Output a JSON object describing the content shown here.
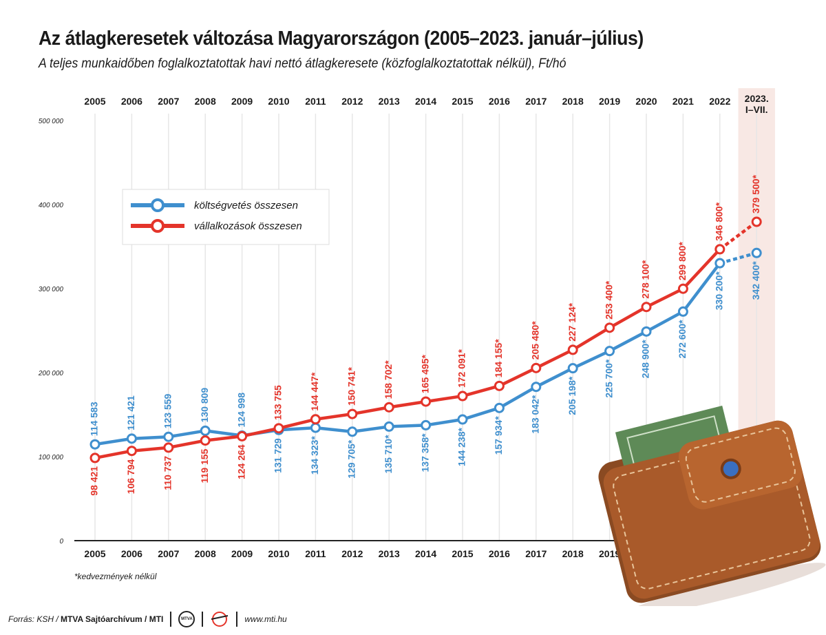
{
  "header": {
    "title": "Az átlagkeresetek változása Magyarországon (2005–2023. január–július)",
    "subtitle": "A teljes munkaidőben foglalkoztatottak havi nettó átlagkeresete (közfoglalkoztatottak nélkül), Ft/hó"
  },
  "footnote": "*kedvezmények nélkül",
  "footer": {
    "source_prefix": "Forrás: KSH / ",
    "source_bold": "MTVA Sajtóarchívum / MTI",
    "mtva_logo_text": "MTVA",
    "website": "www.mti.hu"
  },
  "colors": {
    "blue": "#3f8fce",
    "red": "#e4342a",
    "last_band": "#f8e8e4"
  },
  "chart_data": {
    "type": "line",
    "categories": [
      "2005",
      "2006",
      "2007",
      "2008",
      "2009",
      "2010",
      "2011",
      "2012",
      "2013",
      "2014",
      "2015",
      "2016",
      "2017",
      "2018",
      "2019",
      "2020",
      "2021",
      "2022",
      "2023. I–VII."
    ],
    "ylim": [
      0,
      500000
    ],
    "yticks": [
      0,
      100000,
      200000,
      300000,
      400000,
      500000
    ],
    "ytick_labels": [
      "0",
      "100 000",
      "200 000",
      "300 000",
      "400 000",
      "500 000"
    ],
    "grid": true,
    "legend_position": "upper-left",
    "last_segment_dashed": true,
    "series": [
      {
        "name": "költségvetés összesen",
        "color": "#3f8fce",
        "values": [
          114583,
          121421,
          123559,
          130809,
          124998,
          131729,
          134323,
          129705,
          135710,
          137358,
          144238,
          157934,
          183042,
          205198,
          225700,
          248900,
          272600,
          330200,
          342400
        ],
        "labels": [
          "114 583",
          "121 421",
          "123 559",
          "130 809",
          "124 998",
          "131 729",
          "134 323*",
          "129 705*",
          "135 710*",
          "137 358*",
          "144 238*",
          "157 934*",
          "183 042*",
          "205 198*",
          "225 700*",
          "248 900*",
          "272 600*",
          "330 200*",
          "342 400*"
        ]
      },
      {
        "name": "vállalkozások összesen",
        "color": "#e4342a",
        "values": [
          98421,
          106794,
          110737,
          119155,
          124264,
          133755,
          144447,
          150741,
          158702,
          165495,
          172091,
          184155,
          205480,
          227124,
          253400,
          278100,
          299800,
          346800,
          379500
        ],
        "labels": [
          "98 421",
          "106 794",
          "110 737",
          "119 155",
          "124 264",
          "133 755",
          "144 447*",
          "150 741*",
          "158 702*",
          "165 495*",
          "172 091*",
          "184 155*",
          "205 480*",
          "227 124*",
          "253 400*",
          "278 100*",
          "299 800*",
          "346 800*",
          "379 500*"
        ]
      }
    ]
  }
}
